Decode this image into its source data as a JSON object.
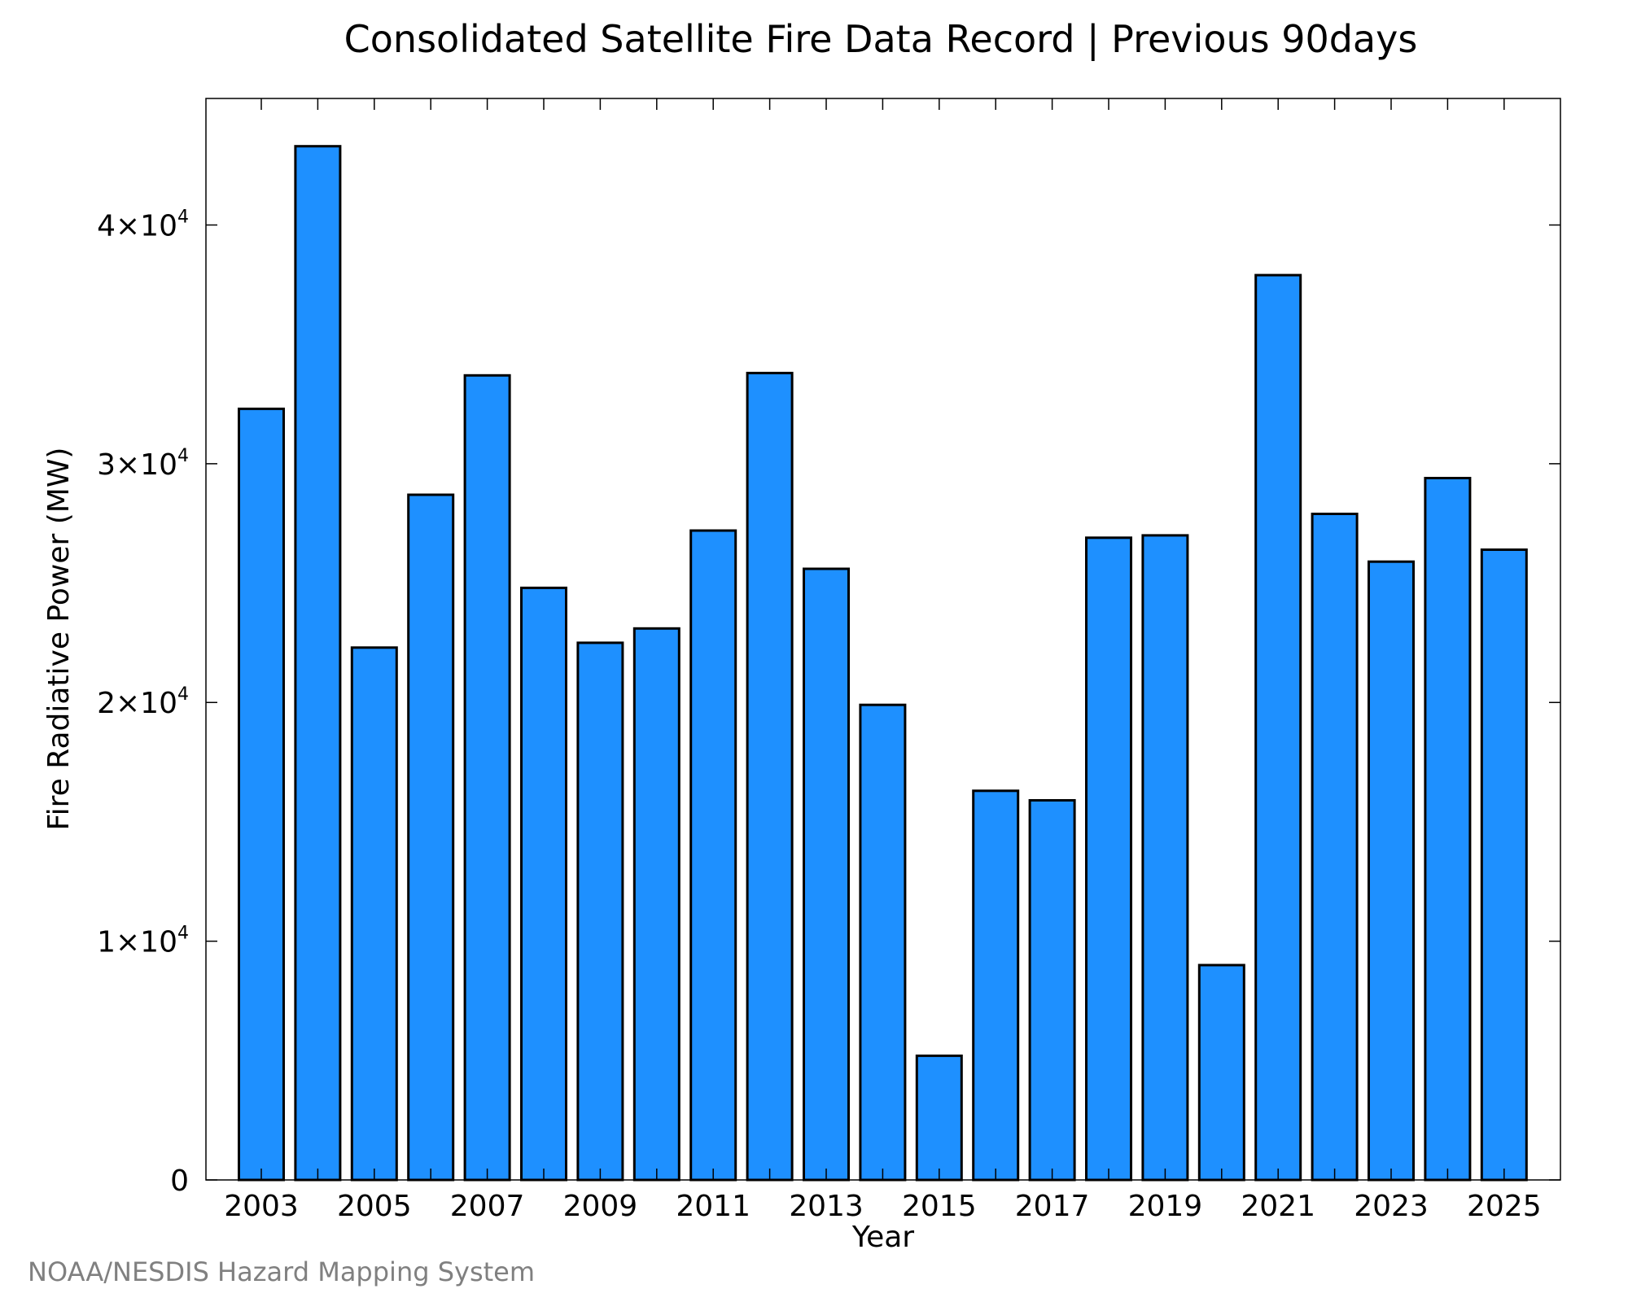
{
  "credit": "NOAA/NESDIS Hazard Mapping System",
  "colors": {
    "bar_fill": "#1E90FF",
    "bar_stroke": "#000000",
    "credit_text": "#808080"
  },
  "chart_data": {
    "type": "bar",
    "title": "Consolidated Satellite Fire Data Record | Previous 90days",
    "xlabel": "Year",
    "ylabel": "Fire Radiative Power (MW)",
    "ylim": [
      0,
      45300
    ],
    "categories": [
      "2003",
      "2004",
      "2005",
      "2006",
      "2007",
      "2008",
      "2009",
      "2010",
      "2011",
      "2012",
      "2013",
      "2014",
      "2015",
      "2016",
      "2017",
      "2018",
      "2019",
      "2020",
      "2021",
      "2022",
      "2023",
      "2024",
      "2025"
    ],
    "values": [
      32300,
      43300,
      22300,
      28700,
      33700,
      24800,
      22500,
      23100,
      27200,
      33800,
      25600,
      19900,
      5200,
      16300,
      15900,
      26900,
      27000,
      9000,
      37900,
      27900,
      25900,
      29400,
      26400
    ],
    "xtick_labels": [
      "2003",
      "2005",
      "2007",
      "2009",
      "2011",
      "2013",
      "2015",
      "2017",
      "2019",
      "2021",
      "2023",
      "2025"
    ],
    "ytick_values": [
      0,
      10000,
      20000,
      30000,
      40000
    ],
    "ytick_labels": [
      {
        "mant": "0",
        "exp": ""
      },
      {
        "mant": "1×10",
        "exp": "4"
      },
      {
        "mant": "2×10",
        "exp": "4"
      },
      {
        "mant": "3×10",
        "exp": "4"
      },
      {
        "mant": "4×10",
        "exp": "4"
      }
    ],
    "grid": false,
    "legend": "none"
  }
}
